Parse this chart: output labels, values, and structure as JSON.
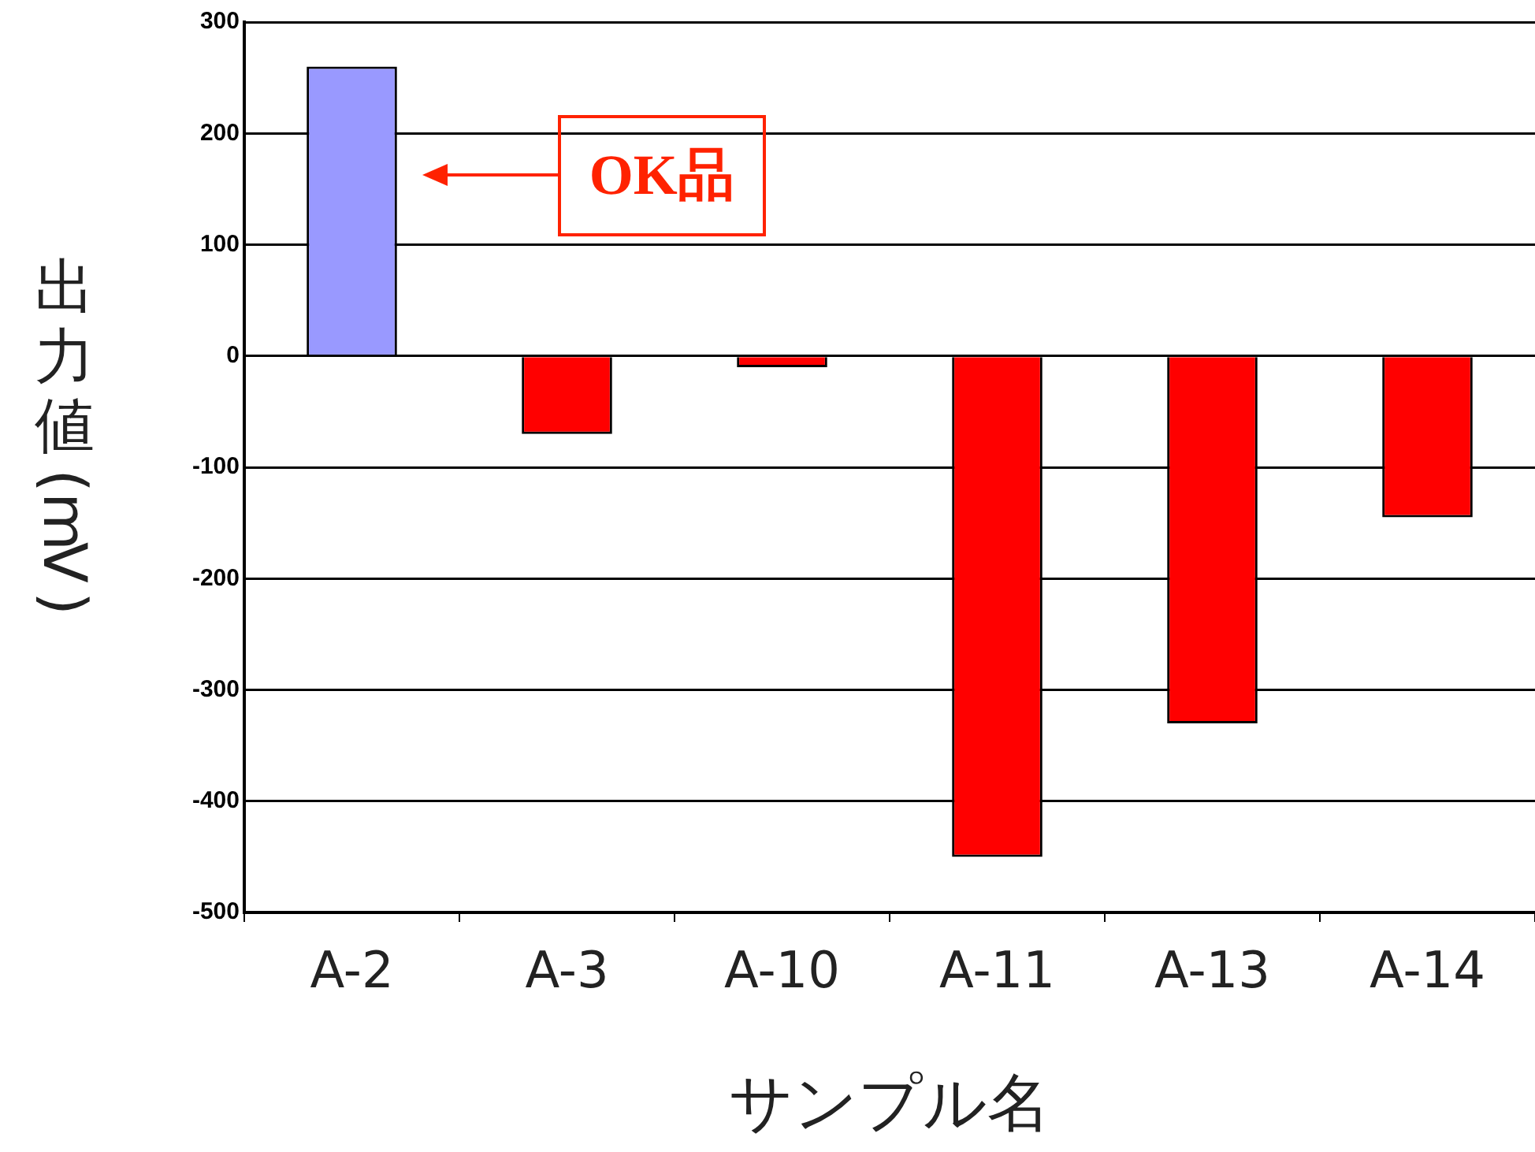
{
  "chart_data": {
    "type": "bar",
    "xlabel": "サンプル名",
    "ylabel": "出力値(mV)",
    "categories": [
      "A-2",
      "A-3",
      "A-10",
      "A-11",
      "A-13",
      "A-14"
    ],
    "values": [
      260,
      -70,
      -10,
      -450,
      -330,
      -145
    ],
    "colors": [
      "#9999ff",
      "#ff0000",
      "#ff0000",
      "#ff0000",
      "#ff0000",
      "#ff0000"
    ],
    "ylim": [
      -500,
      300
    ],
    "yticks": [
      -500,
      -400,
      -300,
      -200,
      -100,
      0,
      100,
      200,
      300
    ],
    "grid": "y",
    "legend": false,
    "annotations": [
      "OK品"
    ]
  }
}
